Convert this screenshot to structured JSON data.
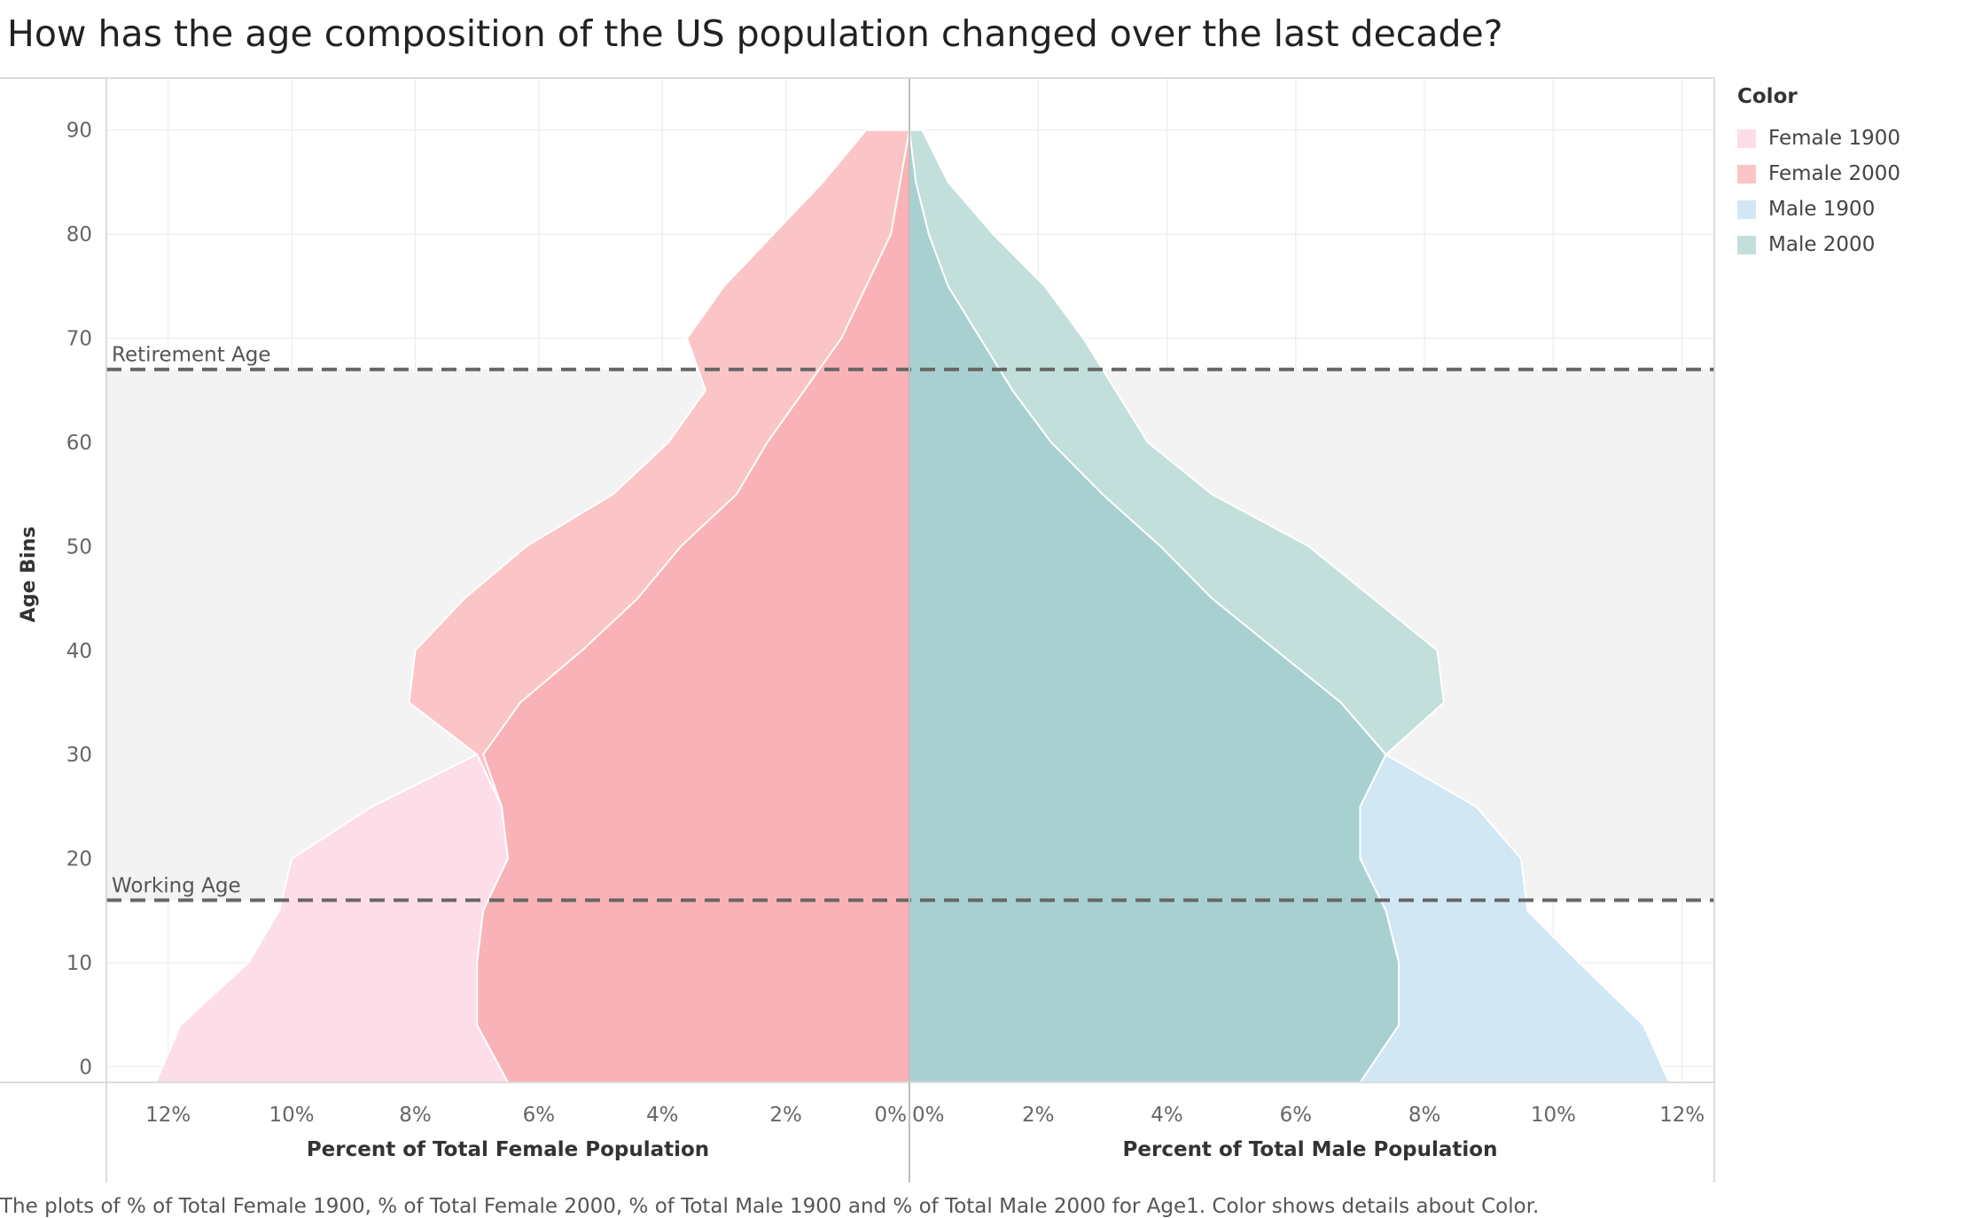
{
  "title": "How has the age composition of the US population changed over the last decade?",
  "caption": "The plots of % of Total Female 1900, % of Total Female 2000, % of Total Male 1900 and % of Total Male 2000 for Age1.  Color shows details about Color.",
  "legend": {
    "title": "Color",
    "items": [
      {
        "label": "Female 1900",
        "color": "#fcdde8"
      },
      {
        "label": "Female 2000",
        "color": "#fbc4c6"
      },
      {
        "label": "Male 1900",
        "color": "#d2e7f4"
      },
      {
        "label": "Male 2000",
        "color": "#c3dfdb"
      }
    ]
  },
  "reference_lines": [
    {
      "label": "Retirement Age",
      "value": 67
    },
    {
      "label": "Working Age",
      "value": 16
    }
  ],
  "chart_data": {
    "type": "area",
    "ylabel": "Age Bins",
    "ylim": [
      -1.5,
      95
    ],
    "yticks": [
      "0",
      "10",
      "20",
      "30",
      "40",
      "50",
      "60",
      "70",
      "80",
      "90"
    ],
    "female_panel": {
      "xlabel": "Percent of Total Female Population",
      "xlim": [
        13,
        0
      ],
      "xticks": [
        "12%",
        "10%",
        "8%",
        "6%",
        "4%",
        "2%",
        "0%"
      ]
    },
    "male_panel": {
      "xlabel": "Percent of Total Male Population",
      "xlim": [
        0,
        12.5
      ],
      "xticks": [
        "0%",
        "2%",
        "4%",
        "6%",
        "8%",
        "10%",
        "12%"
      ]
    },
    "shaded_band": [
      16,
      67
    ],
    "series": [
      {
        "name": "Female 1900",
        "side": "female",
        "color": "#fcdde8",
        "ages": [
          -1.5,
          4,
          10,
          15,
          20,
          25,
          30
        ],
        "values": [
          12.2,
          11.8,
          10.7,
          10.2,
          10.0,
          8.7,
          7.0
        ]
      },
      {
        "name": "Female 2000",
        "side": "female",
        "color": "#fbc4c6",
        "ages": [
          -1.5,
          4,
          10,
          15,
          20,
          25,
          30,
          35,
          40,
          45,
          50,
          55,
          60,
          65,
          70,
          75,
          80,
          85,
          90
        ],
        "values": [
          6.5,
          7.0,
          7.0,
          6.9,
          6.5,
          6.6,
          7.0,
          8.1,
          8.0,
          7.2,
          6.2,
          4.8,
          3.9,
          3.3,
          3.6,
          3.0,
          2.2,
          1.4,
          0.7
        ]
      },
      {
        "name": "Male 1900",
        "side": "male",
        "color": "#d2e7f4",
        "ages": [
          -1.5,
          4,
          10,
          15,
          20,
          25,
          30
        ],
        "values": [
          11.8,
          11.4,
          10.4,
          9.6,
          9.5,
          8.8,
          7.4
        ]
      },
      {
        "name": "Male 2000",
        "side": "male",
        "color": "#c3dfdb",
        "ages": [
          -1.5,
          4,
          10,
          15,
          20,
          25,
          30,
          35,
          40,
          45,
          50,
          55,
          60,
          65,
          70,
          75,
          80,
          85,
          90
        ],
        "values": [
          7.0,
          7.6,
          7.6,
          7.4,
          7.0,
          7.0,
          7.4,
          8.3,
          8.2,
          7.2,
          6.2,
          4.7,
          3.7,
          3.2,
          2.7,
          2.1,
          1.3,
          0.6,
          0.2
        ]
      },
      {
        "name": "Female 2000 core",
        "side": "female",
        "color": "#f9b3b8",
        "ages": [
          -1.5,
          4,
          10,
          15,
          20,
          25,
          30,
          35,
          40,
          45,
          50,
          55,
          60,
          65,
          70,
          75,
          80,
          85,
          90
        ],
        "values": [
          6.5,
          7.0,
          7.0,
          6.9,
          6.5,
          6.6,
          6.9,
          6.3,
          5.3,
          4.4,
          3.7,
          2.8,
          2.3,
          1.7,
          1.1,
          0.7,
          0.3,
          0.15,
          0.0
        ]
      },
      {
        "name": "Male 2000 core",
        "side": "male",
        "color": "#a9d0d1",
        "ages": [
          -1.5,
          4,
          10,
          15,
          20,
          25,
          30,
          35,
          40,
          45,
          50,
          55,
          60,
          65,
          70,
          75,
          80,
          85,
          90
        ],
        "values": [
          7.0,
          7.6,
          7.6,
          7.4,
          7.0,
          7.0,
          7.4,
          6.7,
          5.7,
          4.7,
          3.9,
          3.0,
          2.2,
          1.6,
          1.1,
          0.6,
          0.3,
          0.1,
          0.0
        ]
      }
    ]
  }
}
